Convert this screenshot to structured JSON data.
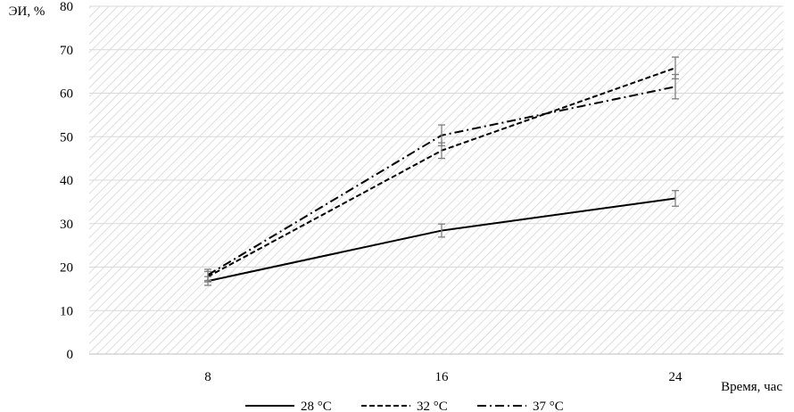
{
  "chart_data": {
    "type": "line",
    "ylabel": "ЭИ, %",
    "xlabel": "Время, час",
    "x": [
      8,
      16,
      24
    ],
    "x_tick_labels": [
      "8",
      "16",
      "24"
    ],
    "ylim": [
      0,
      80
    ],
    "y_ticks": [
      0,
      10,
      20,
      30,
      40,
      50,
      60,
      70,
      80
    ],
    "grid": true,
    "background": "diagonal hatch",
    "legend_position": "bottom",
    "series": [
      {
        "name": "28 °C",
        "style": "solid",
        "color": "#000000",
        "values": [
          16.8,
          28.4,
          35.8
        ],
        "errors": [
          1.0,
          1.5,
          1.8
        ]
      },
      {
        "name": "32 °C",
        "style": "dashed",
        "color": "#000000",
        "values": [
          17.8,
          46.8,
          65.8
        ],
        "errors": [
          1.2,
          1.8,
          2.5
        ]
      },
      {
        "name": "37 °C",
        "style": "dashdot",
        "color": "#000000",
        "values": [
          18.2,
          50.3,
          61.5
        ],
        "errors": [
          1.3,
          2.4,
          2.8
        ]
      }
    ]
  }
}
